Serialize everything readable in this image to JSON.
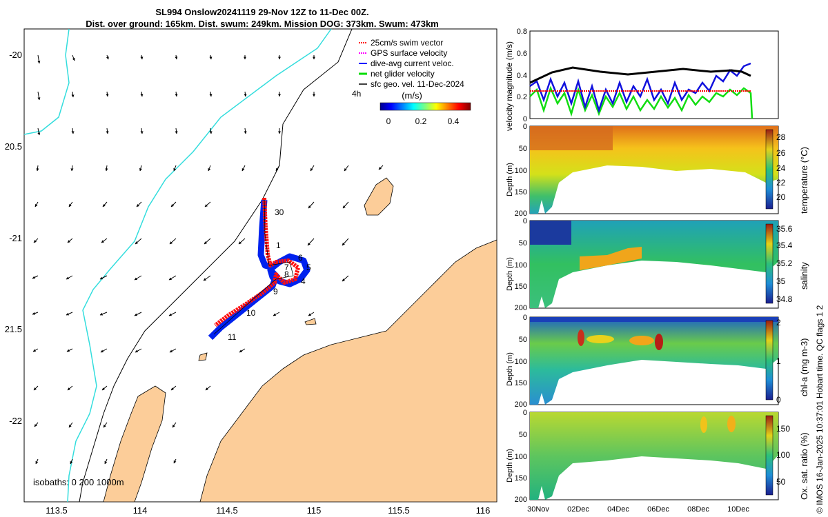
{
  "title": {
    "line1": "SL994 Onslow20241119 29-Nov 12Z to 11-Dec 00Z.",
    "line2": "Dist. over ground: 165km. Dist. swum: 249km. Mission DOG: 373km. Swum: 473km"
  },
  "map": {
    "lon_ticks": [
      "113.5",
      "114",
      "114.5",
      "115",
      "115.5",
      "116"
    ],
    "lat_ticks": [
      "-20",
      "20.5",
      "-21",
      "21.5",
      "-22"
    ],
    "isobaths": "isobaths: 0   200  1000m",
    "legend": [
      {
        "label": "25cm/s swim vector",
        "color": "#ff0000"
      },
      {
        "label": "GPS surface velocity",
        "color": "#ff00ff"
      },
      {
        "label": "dive-avg current veloc.",
        "color": "#0000ff"
      },
      {
        "label": "net glider velocity",
        "color": "#00dd00"
      },
      {
        "label": "sfc geo. vel. 11-Dec-2024",
        "color": "#000000"
      }
    ],
    "speed_label": "(m/s)",
    "colorbar_ticks": [
      "0",
      "0.2",
      "0.4"
    ],
    "time_label": "4h",
    "day_labels": [
      "30",
      "1",
      "6",
      "5",
      "4",
      "7",
      "8",
      "9",
      "10",
      "11"
    ]
  },
  "panels": {
    "velocity": {
      "ylabel": "velocity magnitude (m/s)",
      "yticks": [
        "0",
        "0.2",
        "0.4",
        "0.6",
        "0.8"
      ]
    },
    "temperature": {
      "ylabel": "Depth (m)",
      "cbar_label": "temperature (°C)",
      "cbar_ticks": [
        "28",
        "26",
        "24",
        "22",
        "20"
      ]
    },
    "salinity": {
      "ylabel": "Depth (m)",
      "cbar_label": "salinity",
      "cbar_ticks": [
        "35.6",
        "35.4",
        "35.2",
        "35",
        "34.8"
      ]
    },
    "chla": {
      "ylabel": "Depth (m)",
      "cbar_label": "chl-a (mg m-3)",
      "cbar_ticks": [
        "2",
        "1",
        "0"
      ]
    },
    "oxygen": {
      "ylabel": "Depth (m)",
      "cbar_label": "Ox. sat. ratio (%)",
      "cbar_ticks": [
        "150",
        "100",
        "50"
      ]
    },
    "depth_ticks": [
      "0",
      "50",
      "100",
      "150",
      "200"
    ],
    "x_ticks": [
      "30Nov",
      "02Dec",
      "04Dec",
      "06Dec",
      "08Dec",
      "10Dec"
    ]
  },
  "footer": "© IMOS 16-Jan-2025 10:37:01 Hobart time. QC flags 1  2"
}
